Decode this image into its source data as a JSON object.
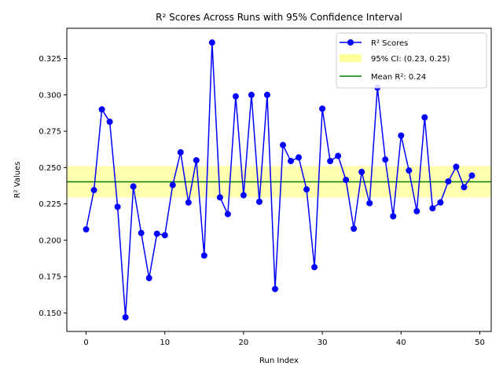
{
  "chart_data": {
    "type": "line",
    "title": "R² Scores Across Runs with 95% Confidence Interval",
    "xlabel": "Run Index",
    "ylabel": "R² Values",
    "xlim": [
      -2.45,
      51.45
    ],
    "ylim": [
      0.1373,
      0.3458
    ],
    "xticks": [
      0,
      10,
      20,
      30,
      40,
      50
    ],
    "yticks": [
      0.15,
      0.175,
      0.2,
      0.225,
      0.25,
      0.275,
      0.3,
      0.325
    ],
    "ytick_labels": [
      "0.150",
      "0.175",
      "0.200",
      "0.225",
      "0.250",
      "0.275",
      "0.300",
      "0.325"
    ],
    "grid": false,
    "legend_placement": "top-right",
    "series": [
      {
        "name": "R² Scores",
        "color": "#0000ff",
        "marker": "circle",
        "x": [
          0,
          1,
          2,
          3,
          4,
          5,
          6,
          7,
          8,
          9,
          10,
          11,
          12,
          13,
          14,
          15,
          16,
          17,
          18,
          19,
          20,
          21,
          22,
          23,
          24,
          25,
          26,
          27,
          28,
          29,
          30,
          31,
          32,
          33,
          34,
          35,
          36,
          37,
          38,
          39,
          40,
          41,
          42,
          43,
          44,
          45,
          46,
          47,
          48,
          49
        ],
        "values": [
          0.2075,
          0.2345,
          0.29,
          0.2815,
          0.223,
          0.147,
          0.237,
          0.205,
          0.174,
          0.2045,
          0.2035,
          0.238,
          0.2605,
          0.226,
          0.255,
          0.1895,
          0.336,
          0.2295,
          0.218,
          0.299,
          0.231,
          0.3,
          0.2265,
          0.3,
          0.1665,
          0.2655,
          0.2545,
          0.257,
          0.235,
          0.1815,
          0.2905,
          0.2545,
          0.258,
          0.2415,
          0.208,
          0.247,
          0.2255,
          0.305,
          0.2555,
          0.2165,
          0.272,
          0.248,
          0.22,
          0.2845,
          0.222,
          0.226,
          0.2405,
          0.2505,
          0.2365,
          0.2445
        ]
      }
    ],
    "confidence_band": {
      "name": "95% CI: (0.23, 0.25)",
      "lower": 0.2295,
      "upper": 0.251,
      "color": "#ffff99"
    },
    "mean_line": {
      "name": "Mean R²: 0.24",
      "value": 0.2402,
      "color": "#008000"
    }
  }
}
